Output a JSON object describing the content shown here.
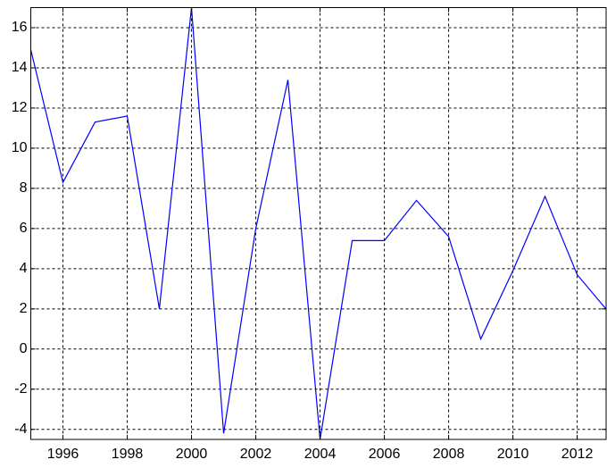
{
  "chart_data": {
    "type": "line",
    "x": [
      1995,
      1996,
      1997,
      1998,
      1999,
      2000,
      2001,
      2002,
      2003,
      2004,
      2005,
      2006,
      2007,
      2008,
      2009,
      2010,
      2011,
      2012,
      2013
    ],
    "series": [
      {
        "color": "#0000ff",
        "values": [
          14.9,
          8.3,
          11.3,
          11.6,
          2.0,
          17.0,
          -4.2,
          6.0,
          13.4,
          -4.5,
          5.4,
          5.4,
          7.4,
          5.6,
          0.5,
          3.9,
          7.6,
          3.7,
          1.8
        ]
      }
    ],
    "xlim": [
      1995,
      2012.9
    ],
    "ylim": [
      -4.5,
      17
    ],
    "xticks": [
      1996,
      1998,
      2000,
      2002,
      2004,
      2006,
      2008,
      2010,
      2012
    ],
    "yticks": [
      -4,
      -2,
      0,
      2,
      4,
      6,
      8,
      10,
      12,
      14,
      16
    ],
    "grid": true
  }
}
